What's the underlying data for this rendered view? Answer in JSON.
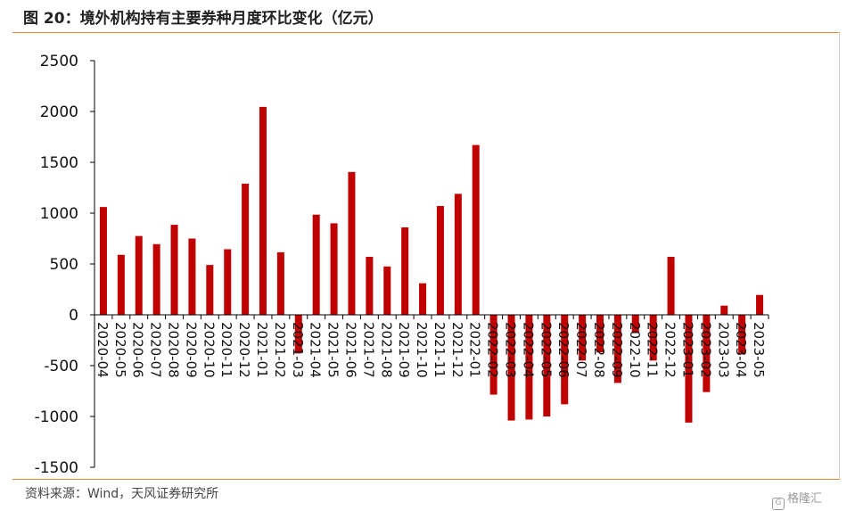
{
  "header": {
    "title": "图 20：境外机构持有主要券种月度环比变化（亿元）"
  },
  "footer": {
    "source": "资料来源：Wind，天风证券研究所",
    "watermark": "格隆汇",
    "watermark_icon": "logo-icon"
  },
  "colors": {
    "bar": "#c00000",
    "rule": "#e8893a",
    "axis": "#000000"
  },
  "chart_data": {
    "type": "bar",
    "title": "境外机构持有主要券种月度环比变化（亿元）",
    "xlabel": "",
    "ylabel": "",
    "ylim": [
      -1500,
      2500
    ],
    "yticks": [
      2500,
      2000,
      1500,
      1000,
      500,
      0,
      -500,
      -1000,
      -1500
    ],
    "grid": false,
    "legend": "none",
    "categories": [
      "2020-04",
      "2020-05",
      "2020-06",
      "2020-07",
      "2020-08",
      "2020-09",
      "2020-10",
      "2020-11",
      "2020-12",
      "2021-01",
      "2021-02",
      "2021-03",
      "2021-04",
      "2021-05",
      "2021-06",
      "2021-07",
      "2021-08",
      "2021-09",
      "2021-10",
      "2021-11",
      "2021-12",
      "2022-01",
      "2022-02",
      "2022-03",
      "2022-04",
      "2022-05",
      "2022-06",
      "2022-07",
      "2022-08",
      "2022-09",
      "2022-10",
      "2022-11",
      "2022-12",
      "2023-01",
      "2023-02",
      "2023-03",
      "2023-04",
      "2023-05"
    ],
    "values": [
      1060,
      590,
      775,
      695,
      885,
      750,
      490,
      645,
      1290,
      2045,
      615,
      -380,
      985,
      900,
      1405,
      570,
      475,
      860,
      310,
      1070,
      1190,
      1670,
      -785,
      -1040,
      -1030,
      -1000,
      -880,
      -450,
      -370,
      -670,
      -180,
      -450,
      570,
      -1060,
      -760,
      90,
      -390,
      195
    ]
  }
}
